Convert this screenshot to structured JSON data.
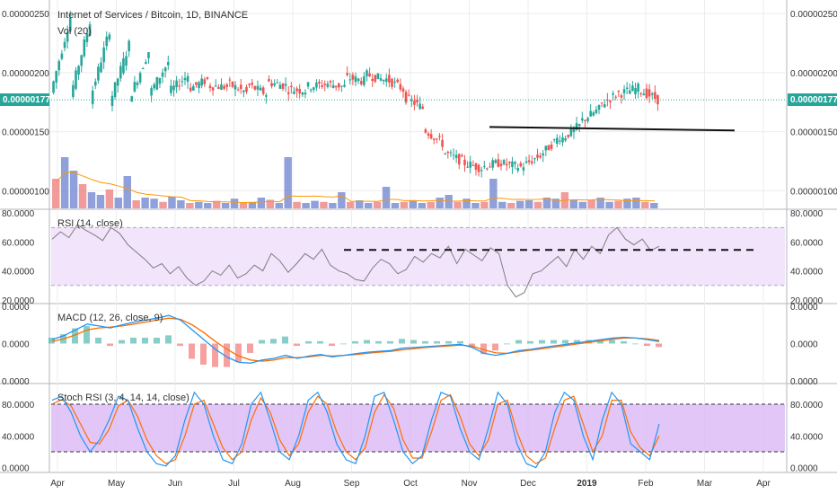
{
  "colors": {
    "up": "#26a69a",
    "down": "#ef5350",
    "volume_up": "#7b8fd4",
    "volume_down": "#ef8a8a",
    "vol_ma": "#ff9800",
    "rsi_line": "#7e7e7e",
    "rsi_band": "#f1e4fb",
    "macd_line": "#2196f3",
    "signal_line": "#ff6d00",
    "hist_up": "#26a69a",
    "hist_down": "#ef5350",
    "stoch_k": "#2196f3",
    "stoch_d": "#ff6d00",
    "stoch_band": "#d9b8f5",
    "last_price": "#26a69a",
    "grid": "#ececec",
    "axis": "#b2b5be"
  },
  "chart_data": [
    {
      "type": "candlestick",
      "panel": "price",
      "title": "Internet of Services / Bitcoin, 1D, BINANCE",
      "subtitle": "Vol (20)",
      "x_labels": [
        "Apr",
        "May",
        "Jun",
        "Jul",
        "Aug",
        "Sep",
        "Oct",
        "Nov",
        "Dec",
        "2019",
        "Feb",
        "Mar",
        "Apr"
      ],
      "y_ticks": [
        "0.00000250",
        "0.00000200",
        "0.00000150",
        "0.00000100"
      ],
      "ylim": [
        8.5e-07,
        2.6e-06
      ],
      "last_price": "0.00000177",
      "last_price_value": 1.77e-06,
      "close_path": [
        [
          1.83e-06,
          2.47e-06
        ],
        [
          1.8e-06,
          2.43e-06
        ],
        [
          1.77e-06,
          2.36e-06
        ],
        [
          1.74e-06,
          2.24e-06
        ],
        [
          1.78e-06,
          2.18e-06
        ],
        [
          1.81e-06,
          2.09e-06
        ],
        [
          1.83e-06,
          1.98e-06
        ],
        [
          1.86e-06,
          1.94e-06
        ],
        [
          1.89e-06,
          1.88e-06
        ],
        [
          1.91e-06,
          1.83e-06
        ],
        [
          1.9e-06,
          1.82e-06
        ],
        [
          1.92e-06,
          1.89e-06
        ],
        [
          1.86e-06,
          1.85e-06
        ],
        [
          1.88e-06,
          1.9e-06
        ],
        [
          1.91e-06,
          1.88e-06
        ],
        [
          1.96e-06,
          1.93e-06
        ],
        [
          1.99e-06,
          1.94e-06
        ],
        [
          1.96e-06,
          1.86e-06
        ],
        [
          1.8e-06,
          1.7e-06
        ],
        [
          1.53e-06,
          1.4e-06
        ],
        [
          1.33e-06,
          1.25e-06
        ],
        [
          1.24e-06,
          1.19e-06
        ],
        [
          1.2e-06,
          1.24e-06
        ],
        [
          1.23e-06,
          1.2e-06
        ],
        [
          1.2e-06,
          1.3e-06
        ],
        [
          1.3e-06,
          1.46e-06
        ],
        [
          1.43e-06,
          1.55e-06
        ],
        [
          1.58e-06,
          1.69e-06
        ],
        [
          1.72e-06,
          1.83e-06
        ],
        [
          1.82e-06,
          1.87e-06
        ],
        [
          1.86e-06,
          1.77e-06
        ]
      ],
      "trendline": {
        "from": 1.54e-06,
        "to": 1.51e-06
      }
    },
    {
      "type": "bar",
      "panel": "volume",
      "name": "Vol (20)",
      "values": [
        0.55,
        0.95,
        0.7,
        0.45,
        0.3,
        0.25,
        0.35,
        0.2,
        0.6,
        0.15,
        0.2,
        0.18,
        0.12,
        0.22,
        0.15,
        0.1,
        0.12,
        0.1,
        0.14,
        0.1,
        0.18,
        0.1,
        0.12,
        0.2,
        0.16,
        0.1,
        0.95,
        0.12,
        0.1,
        0.14,
        0.12,
        0.1,
        0.3,
        0.12,
        0.15,
        0.1,
        0.12,
        0.4,
        0.1,
        0.12,
        0.14,
        0.1,
        0.12,
        0.2,
        0.25,
        0.12,
        0.18,
        0.1,
        0.12,
        0.55,
        0.12,
        0.1,
        0.14,
        0.15,
        0.12,
        0.2,
        0.18,
        0.3,
        0.15,
        0.12,
        0.16,
        0.2,
        0.12,
        0.14,
        0.18,
        0.2,
        0.12,
        0.1
      ]
    },
    {
      "type": "line",
      "panel": "rsi",
      "title": "RSI (14, close)",
      "y_ticks": [
        "80.0000",
        "60.0000",
        "40.0000",
        "20.0000"
      ],
      "ylim": [
        18,
        82
      ],
      "band": [
        30,
        70
      ],
      "values": [
        62,
        67,
        63,
        72,
        68,
        65,
        61,
        70,
        66,
        58,
        53,
        48,
        42,
        45,
        38,
        43,
        35,
        30,
        33,
        40,
        37,
        44,
        35,
        38,
        44,
        40,
        52,
        47,
        39,
        45,
        52,
        48,
        55,
        44,
        40,
        38,
        34,
        33,
        42,
        48,
        45,
        38,
        41,
        50,
        46,
        52,
        49,
        57,
        45,
        55,
        51,
        47,
        56,
        52,
        30,
        22,
        25,
        38,
        40,
        45,
        50,
        43,
        55,
        48,
        57,
        52,
        65,
        70,
        62,
        58,
        62,
        54,
        57
      ],
      "level_line": {
        "value": 54.5,
        "label": ""
      }
    },
    {
      "type": "line",
      "panel": "macd",
      "title": "MACD (12, 26, close, 9)",
      "y_ticks": [
        "0.0000",
        "0.0000",
        "0.0000"
      ],
      "ylim": [
        -1,
        1
      ],
      "macd": [
        0.1,
        0.2,
        0.35,
        0.5,
        0.45,
        0.4,
        0.48,
        0.55,
        0.6,
        0.65,
        0.72,
        0.6,
        0.35,
        0.1,
        -0.15,
        -0.35,
        -0.48,
        -0.5,
        -0.42,
        -0.38,
        -0.3,
        -0.38,
        -0.32,
        -0.28,
        -0.34,
        -0.3,
        -0.26,
        -0.22,
        -0.2,
        -0.18,
        -0.12,
        -0.1,
        -0.08,
        -0.06,
        -0.04,
        -0.02,
        -0.1,
        -0.25,
        -0.3,
        -0.25,
        -0.18,
        -0.15,
        -0.1,
        -0.06,
        -0.02,
        0.02,
        0.06,
        0.1,
        0.14,
        0.16,
        0.14,
        0.1,
        0.05
      ],
      "signal": [
        0.05,
        0.12,
        0.22,
        0.35,
        0.4,
        0.42,
        0.45,
        0.5,
        0.55,
        0.6,
        0.65,
        0.62,
        0.48,
        0.28,
        0.05,
        -0.15,
        -0.32,
        -0.42,
        -0.45,
        -0.42,
        -0.36,
        -0.36,
        -0.34,
        -0.3,
        -0.32,
        -0.3,
        -0.28,
        -0.25,
        -0.22,
        -0.2,
        -0.16,
        -0.13,
        -0.1,
        -0.08,
        -0.06,
        -0.04,
        -0.07,
        -0.16,
        -0.24,
        -0.25,
        -0.21,
        -0.17,
        -0.13,
        -0.09,
        -0.05,
        -0.01,
        0.03,
        0.07,
        0.11,
        0.14,
        0.14,
        0.12,
        0.08
      ]
    },
    {
      "type": "line",
      "panel": "stoch",
      "title": "Stoch RSI (3, 4, 14, 14, close)",
      "y_ticks": [
        "80.0000",
        "40.0000",
        "0.0000"
      ],
      "ylim": [
        -5,
        105
      ],
      "band": [
        20,
        80
      ],
      "k": [
        85,
        90,
        70,
        40,
        20,
        35,
        60,
        90,
        85,
        50,
        20,
        5,
        2,
        15,
        60,
        95,
        80,
        40,
        10,
        5,
        30,
        80,
        95,
        60,
        20,
        10,
        40,
        85,
        95,
        70,
        30,
        10,
        5,
        40,
        90,
        95,
        60,
        20,
        5,
        15,
        60,
        95,
        90,
        50,
        20,
        10,
        50,
        95,
        80,
        30,
        5,
        0,
        20,
        70,
        95,
        85,
        40,
        10,
        60,
        95,
        80,
        30,
        20,
        10,
        55
      ],
      "d": [
        80,
        86,
        78,
        55,
        32,
        30,
        48,
        78,
        85,
        65,
        35,
        15,
        5,
        10,
        40,
        80,
        85,
        55,
        25,
        10,
        20,
        60,
        88,
        70,
        35,
        15,
        30,
        70,
        90,
        80,
        45,
        20,
        10,
        25,
        70,
        92,
        75,
        35,
        12,
        12,
        45,
        85,
        92,
        65,
        30,
        15,
        35,
        80,
        85,
        45,
        15,
        5,
        12,
        50,
        85,
        90,
        55,
        20,
        40,
        85,
        85,
        45,
        25,
        15,
        40
      ]
    }
  ]
}
